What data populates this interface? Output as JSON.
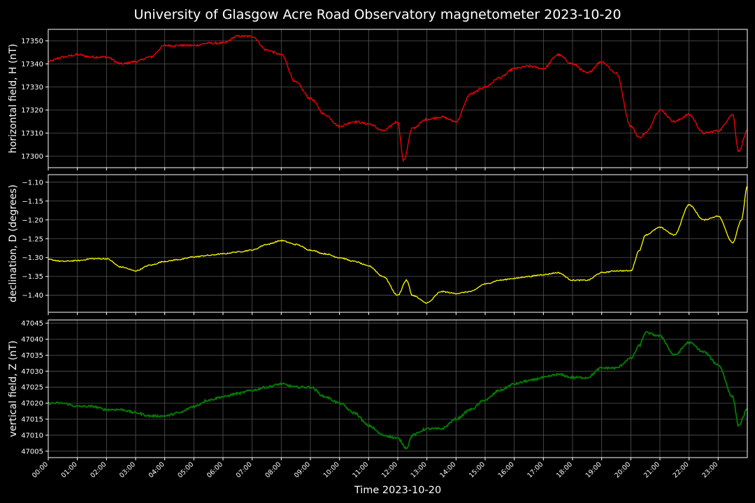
{
  "title": "University of Glasgow Acre Road Observatory magnetometer 2023-10-20",
  "chart_data": [
    {
      "type": "line",
      "ylabel": "horizontal field, H (nT)",
      "color": "#ff0000",
      "ylim": [
        17295,
        17355
      ],
      "yticks": [
        17300,
        17310,
        17320,
        17330,
        17340,
        17350
      ],
      "grid": true,
      "x": [
        0,
        0.5,
        1,
        1.5,
        2,
        2.5,
        3,
        3.5,
        4,
        4.5,
        5,
        5.5,
        6,
        6.5,
        7,
        7.5,
        8,
        8.5,
        9,
        9.5,
        10,
        10.5,
        11,
        11.5,
        12,
        12.2,
        12.5,
        13,
        13.5,
        14,
        14.5,
        15,
        15.5,
        16,
        16.5,
        17,
        17.5,
        18,
        18.5,
        19,
        19.5,
        20,
        20.3,
        20.5,
        21,
        21.5,
        22,
        22.5,
        23,
        23.5,
        23.7,
        24
      ],
      "values": [
        17341,
        17343,
        17344,
        17343,
        17343,
        17340,
        17341,
        17343,
        17348,
        17348,
        17348,
        17349,
        17349,
        17352,
        17352,
        17346,
        17344,
        17332,
        17325,
        17318,
        17313,
        17315,
        17314,
        17311,
        17315,
        17298,
        17312,
        17316,
        17317,
        17315,
        17327,
        17330,
        17334,
        17338,
        17339,
        17338,
        17344,
        17340,
        17336,
        17341,
        17336,
        17313,
        17308,
        17310,
        17320,
        17315,
        17318,
        17310,
        17311,
        17318,
        17302,
        17311
      ]
    },
    {
      "type": "line",
      "ylabel": "declination, D (degrees)",
      "color": "#ffff00",
      "ylim": [
        -1.445,
        -1.08
      ],
      "yticks": [
        -1.4,
        -1.35,
        -1.3,
        -1.25,
        -1.2,
        -1.15,
        -1.1
      ],
      "ytick_labels": [
        "−1.40",
        "−1.35",
        "−1.30",
        "−1.25",
        "−1.20",
        "−1.15",
        "−1.10"
      ],
      "grid": true,
      "x": [
        0,
        0.5,
        1,
        1.5,
        2,
        2.5,
        3,
        3.5,
        4,
        4.5,
        5,
        5.5,
        6,
        6.5,
        7,
        7.5,
        8,
        8.5,
        9,
        9.5,
        10,
        10.5,
        11,
        11.5,
        12,
        12.3,
        12.5,
        13,
        13.5,
        14,
        14.5,
        15,
        15.5,
        16,
        16.5,
        17,
        17.5,
        18,
        18.5,
        19,
        19.5,
        20,
        20.3,
        20.5,
        21,
        21.5,
        22,
        22.5,
        23,
        23.5,
        23.8,
        24
      ],
      "values": [
        -1.305,
        -1.31,
        -1.308,
        -1.303,
        -1.303,
        -1.325,
        -1.335,
        -1.32,
        -1.31,
        -1.305,
        -1.298,
        -1.294,
        -1.29,
        -1.285,
        -1.28,
        -1.265,
        -1.255,
        -1.265,
        -1.28,
        -1.29,
        -1.3,
        -1.31,
        -1.322,
        -1.35,
        -1.4,
        -1.36,
        -1.4,
        -1.42,
        -1.39,
        -1.395,
        -1.39,
        -1.37,
        -1.36,
        -1.355,
        -1.35,
        -1.345,
        -1.34,
        -1.36,
        -1.36,
        -1.34,
        -1.335,
        -1.335,
        -1.28,
        -1.24,
        -1.22,
        -1.24,
        -1.16,
        -1.2,
        -1.19,
        -1.26,
        -1.2,
        -1.11
      ]
    },
    {
      "type": "line",
      "ylabel": "vertical field, Z (nT)",
      "color": "#008000",
      "ylim": [
        47003,
        47046
      ],
      "yticks": [
        47005,
        47010,
        47015,
        47020,
        47025,
        47030,
        47035,
        47040,
        47045
      ],
      "grid": true,
      "xlabel": "Time 2023-10-20",
      "xlim": [
        0,
        24
      ],
      "xtick_labels": [
        "00:00",
        "01:00",
        "02:00",
        "03:00",
        "04:00",
        "05:00",
        "06:00",
        "07:00",
        "08:00",
        "09:00",
        "10:00",
        "11:00",
        "12:00",
        "13:00",
        "14:00",
        "15:00",
        "16:00",
        "17:00",
        "18:00",
        "19:00",
        "20:00",
        "21:00",
        "22:00",
        "23:00"
      ],
      "x": [
        0,
        0.5,
        1,
        1.5,
        2,
        2.5,
        3,
        3.5,
        4,
        4.5,
        5,
        5.5,
        6,
        6.5,
        7,
        7.5,
        8,
        8.5,
        9,
        9.5,
        10,
        10.5,
        11,
        11.5,
        12,
        12.3,
        12.5,
        13,
        13.5,
        14,
        14.5,
        15,
        15.5,
        16,
        16.5,
        17,
        17.5,
        18,
        18.5,
        19,
        19.5,
        20,
        20.3,
        20.5,
        21,
        21.5,
        22,
        22.5,
        23,
        23.5,
        23.7,
        24
      ],
      "values": [
        47020,
        47020,
        47019,
        47019,
        47018,
        47018,
        47017,
        47016,
        47016,
        47017,
        47019,
        47021,
        47022,
        47023,
        47024,
        47025,
        47026,
        47025,
        47025,
        47022,
        47020,
        47017,
        47013,
        47010,
        47009,
        47006,
        47010,
        47012,
        47012,
        47015,
        47018,
        47021,
        47024,
        47026,
        47027,
        47028,
        47029,
        47028,
        47028,
        47031,
        47031,
        47034,
        47038,
        47042,
        47041,
        47035,
        47039,
        47036,
        47032,
        47022,
        47013,
        47018
      ]
    }
  ]
}
